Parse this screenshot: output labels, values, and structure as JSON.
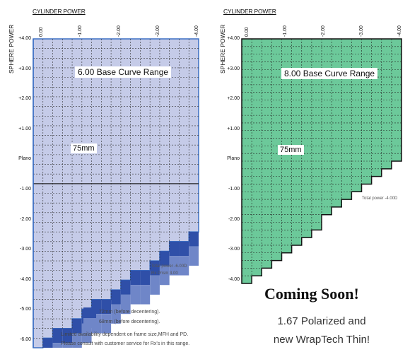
{
  "axis": {
    "cylinder_title": "CYLINDER POWER",
    "sphere_title": "SPHERE POWER",
    "cyl_ticks": [
      "0.00",
      "-1.00",
      "-2.00",
      "-3.00",
      "-4.00"
    ],
    "left_sph_ticks": [
      "+4.00",
      "+3.00",
      "+2.00",
      "+1.00",
      "Plano",
      "-1.00",
      "-2.00",
      "-3.00",
      "-4.00",
      "-5.00",
      "-6.00"
    ],
    "right_sph_ticks": [
      "+4.00",
      "+3.00",
      "+2.00",
      "+1.00",
      "Plano",
      "-1.00",
      "-2.00",
      "-3.00",
      "-4.00"
    ]
  },
  "left_chart": {
    "range_label": "6.00 Base Curve Range",
    "mm_label": "75mm",
    "total_power_note": "Total power -6.00D",
    "prism_note": "Rx Prism 3.00",
    "legend": [
      {
        "label": "72mm (before decentering).",
        "color": "#2f4fa8"
      },
      {
        "label": "68mm (before decentering).",
        "color": "#6f86c8"
      }
    ],
    "footnote_1": "Limited availability dependent on frame size,MFH and PD.",
    "footnote_2": "Please consult with customer service for Rx's in this range.",
    "colors": {
      "base": "#c5cbe8",
      "dark": "#2f4fa8",
      "mid": "#6f86c8",
      "border": "#3b6fc4"
    }
  },
  "right_chart": {
    "range_label": "8.00 Base Curve Range",
    "mm_label": "75mm",
    "total_power_note": "Total power -4.00D",
    "colors": {
      "base": "#6cc99a",
      "border": "#111111"
    }
  },
  "promo": {
    "headline": "Coming Soon!",
    "line1": "1.67 Polarized and",
    "line2": "new WrapTech Thin!"
  }
}
